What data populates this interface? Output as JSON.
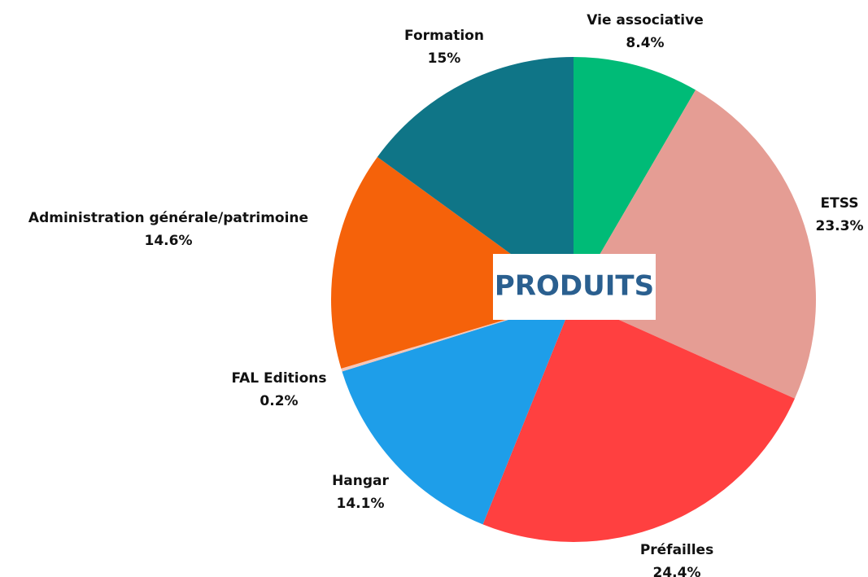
{
  "chart_data": {
    "type": "pie",
    "title": "PRODUITS",
    "categories": [
      "Vie associative",
      "ETSS",
      "Préfailles",
      "Hangar",
      "FAL Editions",
      "Administration générale/patrimoine",
      "Formation"
    ],
    "values": [
      8.4,
      23.3,
      24.4,
      14.1,
      0.2,
      14.6,
      15
    ],
    "value_labels": [
      "8.4%",
      "23.3%",
      "24.4%",
      "14.1%",
      "0.2%",
      "14.6%",
      "15%"
    ],
    "colors": [
      "#00bb77",
      "#e59d94",
      "#ff4040",
      "#1e9ee9",
      "#f4c6b8",
      "#f5620a",
      "#0f7587"
    ]
  }
}
